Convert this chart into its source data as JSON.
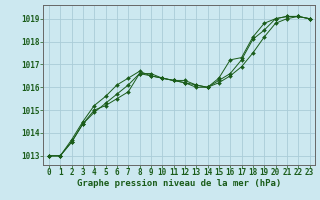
{
  "title": "Graphe pression niveau de la mer (hPa)",
  "bg_color": "#cce8f0",
  "grid_color": "#aaccd8",
  "line_color": "#1a5c1a",
  "marker_color": "#1a5c1a",
  "xlim": [
    -0.5,
    23.5
  ],
  "ylim": [
    1012.6,
    1019.6
  ],
  "yticks": [
    1013,
    1014,
    1015,
    1016,
    1017,
    1018,
    1019
  ],
  "xticks": [
    0,
    1,
    2,
    3,
    4,
    5,
    6,
    7,
    8,
    9,
    10,
    11,
    12,
    13,
    14,
    15,
    16,
    17,
    18,
    19,
    20,
    21,
    22,
    23
  ],
  "line1_x": [
    0,
    1,
    2,
    3,
    4,
    5,
    6,
    7,
    8,
    9,
    10,
    11,
    12,
    13,
    14,
    15,
    16,
    17,
    18,
    19,
    20,
    21,
    22,
    23
  ],
  "line1_y": [
    1013.0,
    1013.0,
    1013.6,
    1014.4,
    1015.0,
    1015.2,
    1015.5,
    1015.8,
    1016.6,
    1016.6,
    1016.4,
    1016.3,
    1016.3,
    1016.1,
    1016.0,
    1016.2,
    1016.5,
    1016.9,
    1017.5,
    1018.2,
    1018.8,
    1019.0,
    1019.1,
    1019.0
  ],
  "line2_x": [
    0,
    1,
    2,
    3,
    4,
    5,
    6,
    7,
    8,
    9,
    10,
    11,
    12,
    13,
    14,
    15,
    16,
    17,
    18,
    19,
    20,
    21,
    22,
    23
  ],
  "line2_y": [
    1013.0,
    1013.0,
    1013.6,
    1014.4,
    1014.9,
    1015.3,
    1015.7,
    1016.1,
    1016.6,
    1016.5,
    1016.4,
    1016.3,
    1016.2,
    1016.1,
    1016.0,
    1016.3,
    1016.6,
    1017.2,
    1018.1,
    1018.5,
    1019.0,
    1019.1,
    1019.1,
    1019.0
  ],
  "line3_x": [
    0,
    1,
    2,
    3,
    4,
    5,
    6,
    7,
    8,
    9,
    10,
    11,
    12,
    13,
    14,
    15,
    16,
    17,
    18,
    19,
    20,
    21,
    22,
    23
  ],
  "line3_y": [
    1013.0,
    1013.0,
    1013.7,
    1014.5,
    1015.2,
    1015.6,
    1016.1,
    1016.4,
    1016.7,
    1016.5,
    1016.4,
    1016.3,
    1016.2,
    1016.0,
    1016.0,
    1016.4,
    1017.2,
    1017.3,
    1018.2,
    1018.8,
    1019.0,
    1019.1,
    1019.1,
    1019.0
  ],
  "xlabel_fontsize": 5.5,
  "ylabel_fontsize": 5.5,
  "title_fontsize": 6.5
}
